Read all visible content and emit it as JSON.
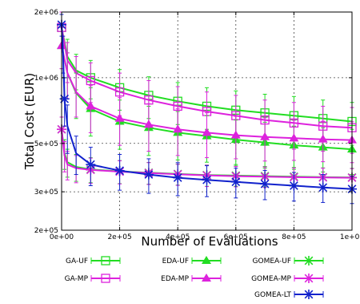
{
  "chart_data": {
    "type": "line",
    "title": "",
    "xlabel": "Number of Evaluations",
    "ylabel": "Total Cost (EUR)",
    "x_scale": "linear",
    "y_scale": "log",
    "xlim": [
      0,
      1000000
    ],
    "ylim": [
      200000,
      2000000
    ],
    "x_ticks": [
      {
        "value": 0,
        "label": "0e+00"
      },
      {
        "value": 200000,
        "label": "2e+05"
      },
      {
        "value": 400000,
        "label": "4e+05"
      },
      {
        "value": 600000,
        "label": "6e+05"
      },
      {
        "value": 800000,
        "label": "8e+05"
      },
      {
        "value": 1000000,
        "label": "1e+06"
      }
    ],
    "y_ticks": [
      {
        "value": 200000,
        "label": "2e+05"
      },
      {
        "value": 300000,
        "label": "3e+05"
      },
      {
        "value": 500000,
        "label": "5e+05"
      },
      {
        "value": 1000000,
        "label": "1e+06"
      },
      {
        "value": 2000000,
        "label": "2e+06"
      }
    ],
    "grid": true,
    "legend_position": "bottom",
    "series": [
      {
        "name": "GA-UF",
        "color": "#22dd22",
        "marker": "square",
        "marker_x": [
          0,
          100000,
          200000,
          300000,
          400000,
          500000,
          600000,
          700000,
          800000,
          900000,
          1000000
        ],
        "x": [
          0,
          20000,
          50000,
          100000,
          200000,
          300000,
          400000,
          500000,
          600000,
          700000,
          800000,
          900000,
          1000000
        ],
        "y": [
          1700000,
          1250000,
          1080000,
          1000000,
          900000,
          830000,
          780000,
          740000,
          710000,
          690000,
          670000,
          650000,
          630000
        ],
        "err": [
          300000,
          250000,
          200000,
          200000,
          190000,
          180000,
          170000,
          160000,
          160000,
          150000,
          150000,
          140000,
          140000
        ]
      },
      {
        "name": "GA-MP",
        "color": "#dd22dd",
        "marker": "square",
        "marker_x": [
          0,
          100000,
          200000,
          300000,
          400000,
          500000,
          600000,
          700000,
          800000,
          900000,
          1000000
        ],
        "x": [
          0,
          20000,
          50000,
          100000,
          200000,
          300000,
          400000,
          500000,
          600000,
          700000,
          800000,
          900000,
          1000000
        ],
        "y": [
          1700000,
          1200000,
          1050000,
          970000,
          860000,
          790000,
          740000,
          700000,
          670000,
          640000,
          620000,
          600000,
          590000
        ],
        "err": [
          300000,
          250000,
          200000,
          200000,
          190000,
          180000,
          170000,
          160000,
          160000,
          150000,
          150000,
          140000,
          140000
        ]
      },
      {
        "name": "EDA-UF",
        "color": "#22dd22",
        "marker": "triangle",
        "marker_x": [
          0,
          100000,
          200000,
          300000,
          400000,
          500000,
          600000,
          700000,
          800000,
          900000,
          1000000
        ],
        "x": [
          0,
          20000,
          50000,
          100000,
          200000,
          300000,
          400000,
          500000,
          600000,
          700000,
          800000,
          900000,
          1000000
        ],
        "y": [
          1400000,
          1050000,
          850000,
          720000,
          630000,
          590000,
          560000,
          540000,
          520000,
          505000,
          490000,
          480000,
          470000
        ],
        "err": [
          300000,
          250000,
          200000,
          180000,
          160000,
          150000,
          140000,
          130000,
          120000,
          120000,
          110000,
          110000,
          110000
        ]
      },
      {
        "name": "EDA-MP",
        "color": "#dd22dd",
        "marker": "triangle",
        "marker_x": [
          0,
          100000,
          200000,
          300000,
          400000,
          500000,
          600000,
          700000,
          800000,
          900000,
          1000000
        ],
        "x": [
          0,
          20000,
          50000,
          100000,
          200000,
          300000,
          400000,
          500000,
          600000,
          700000,
          800000,
          900000,
          1000000
        ],
        "y": [
          1400000,
          1050000,
          860000,
          740000,
          650000,
          610000,
          580000,
          560000,
          545000,
          535000,
          528000,
          522000,
          518000
        ],
        "err": [
          300000,
          250000,
          200000,
          180000,
          160000,
          150000,
          140000,
          130000,
          120000,
          120000,
          110000,
          110000,
          110000
        ]
      },
      {
        "name": "GOMEA-UF",
        "color": "#22dd22",
        "marker": "asterisk",
        "marker_x": [
          0,
          100000,
          200000,
          300000,
          400000,
          500000,
          600000,
          700000,
          800000,
          900000,
          1000000
        ],
        "x": [
          0,
          10000,
          20000,
          50000,
          100000,
          200000,
          300000,
          400000,
          500000,
          600000,
          700000,
          800000,
          900000,
          1000000
        ],
        "y": [
          580000,
          450000,
          410000,
          390000,
          380000,
          372000,
          367000,
          362000,
          358000,
          356000,
          354000,
          352000,
          350000,
          349000
        ],
        "err": [
          80000,
          70000,
          60000,
          55000,
          50000,
          45000,
          42000,
          40000,
          40000,
          38000,
          38000,
          36000,
          36000,
          35000
        ]
      },
      {
        "name": "GOMEA-MP",
        "color": "#dd22dd",
        "marker": "asterisk",
        "marker_x": [
          0,
          100000,
          200000,
          300000,
          400000,
          500000,
          600000,
          700000,
          800000,
          900000,
          1000000
        ],
        "x": [
          0,
          10000,
          20000,
          50000,
          100000,
          200000,
          300000,
          400000,
          500000,
          600000,
          700000,
          800000,
          900000,
          1000000
        ],
        "y": [
          580000,
          440000,
          400000,
          385000,
          378000,
          371000,
          366000,
          361000,
          357000,
          354000,
          352000,
          350000,
          349000,
          348000
        ],
        "err": [
          80000,
          70000,
          60000,
          55000,
          50000,
          45000,
          42000,
          40000,
          40000,
          38000,
          38000,
          36000,
          36000,
          35000
        ]
      },
      {
        "name": "GOMEA-LT",
        "color": "#1122cc",
        "marker": "asterisk",
        "marker_x": [
          0,
          10000,
          100000,
          200000,
          300000,
          400000,
          500000,
          600000,
          700000,
          800000,
          900000,
          1000000
        ],
        "x": [
          0,
          5000,
          10000,
          20000,
          50000,
          100000,
          200000,
          300000,
          400000,
          500000,
          600000,
          700000,
          800000,
          900000,
          1000000
        ],
        "y": [
          1750000,
          1300000,
          800000,
          600000,
          450000,
          400000,
          375000,
          360000,
          348000,
          340000,
          333000,
          326000,
          320000,
          314000,
          309000
        ],
        "err": [
          200000,
          250000,
          200000,
          150000,
          90000,
          80000,
          70000,
          65000,
          60000,
          55000,
          52000,
          50000,
          48000,
          46000,
          44000
        ]
      }
    ]
  }
}
